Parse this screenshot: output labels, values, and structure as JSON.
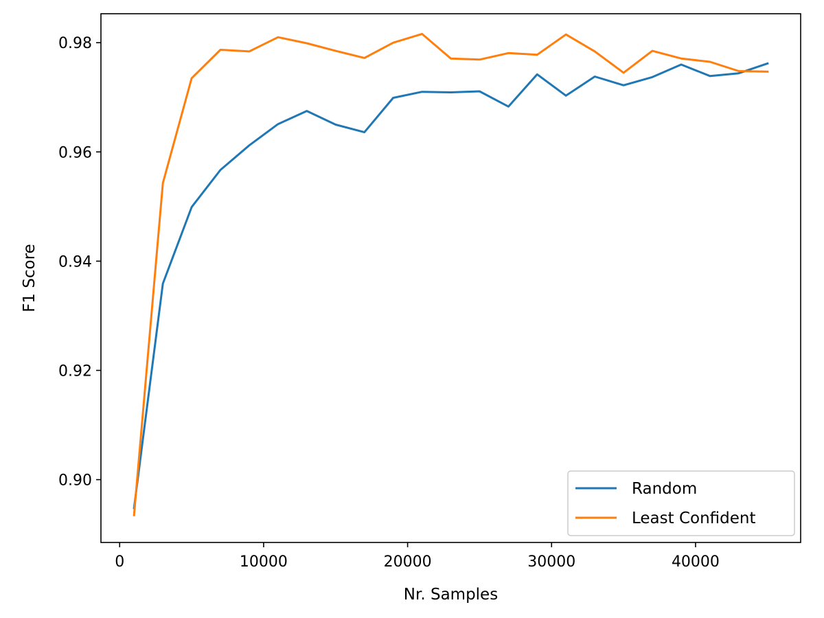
{
  "chart_data": {
    "type": "line",
    "title": "",
    "xlabel": "Nr. Samples",
    "ylabel": "F1 Score",
    "xlim": [
      -1300,
      47300
    ],
    "ylim": [
      0.8885,
      0.9853
    ],
    "xticks": [
      0,
      10000,
      20000,
      30000,
      40000
    ],
    "xtick_labels": [
      "0",
      "10000",
      "20000",
      "30000",
      "40000"
    ],
    "yticks": [
      0.9,
      0.92,
      0.94,
      0.96,
      0.98
    ],
    "ytick_labels": [
      "0.90",
      "0.92",
      "0.94",
      "0.96",
      "0.98"
    ],
    "grid": false,
    "legend_position": "bottom-right",
    "x": [
      1000,
      3000,
      5000,
      7000,
      9000,
      11000,
      13000,
      15000,
      17000,
      19000,
      21000,
      23000,
      25000,
      27000,
      29000,
      31000,
      33000,
      35000,
      37000,
      39000,
      41000,
      43000,
      45000
    ],
    "series": [
      {
        "name": "Random",
        "color": "#1f77b4",
        "values": [
          0.8948,
          0.9359,
          0.9499,
          0.9567,
          0.9612,
          0.9651,
          0.9675,
          0.965,
          0.9636,
          0.9699,
          0.971,
          0.9709,
          0.9711,
          0.9683,
          0.9742,
          0.9703,
          0.9738,
          0.9722,
          0.9737,
          0.976,
          0.9739,
          0.9744,
          0.9762
        ]
      },
      {
        "name": "Least Confident",
        "color": "#ff7f0e",
        "values": [
          0.8935,
          0.9543,
          0.9735,
          0.9787,
          0.9784,
          0.981,
          0.9799,
          0.9785,
          0.9772,
          0.98,
          0.9816,
          0.9771,
          0.9769,
          0.9781,
          0.9778,
          0.9815,
          0.9784,
          0.9745,
          0.9785,
          0.9771,
          0.9765,
          0.9748,
          0.9747
        ]
      }
    ]
  }
}
